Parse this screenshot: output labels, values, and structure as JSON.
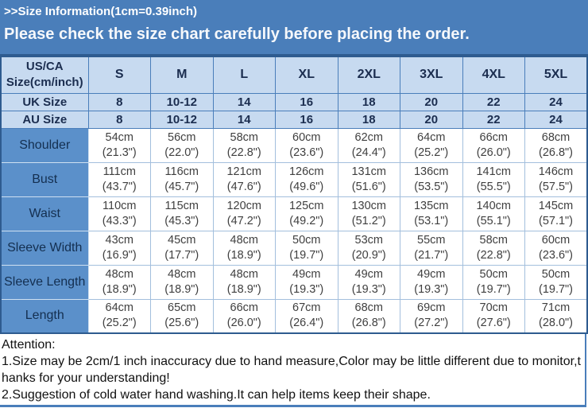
{
  "banner": {
    "line1": ">>Size Information(1cm=0.39inch)",
    "line2": "Please check the size chart carefully before placing the order."
  },
  "table": {
    "header": [
      "US/CA\nSize(cm/inch)",
      "S",
      "M",
      "L",
      "XL",
      "2XL",
      "3XL",
      "4XL",
      "5XL"
    ],
    "size_rows": [
      {
        "label": "UK Size",
        "values": [
          "8",
          "10-12",
          "14",
          "16",
          "18",
          "20",
          "22",
          "24"
        ]
      },
      {
        "label": "AU Size",
        "values": [
          "8",
          "10-12",
          "14",
          "16",
          "18",
          "20",
          "22",
          "24"
        ]
      }
    ],
    "measure_rows": [
      {
        "label": "Shoulder",
        "values": [
          [
            "54cm",
            "(21.3\")"
          ],
          [
            "56cm",
            "(22.0\")"
          ],
          [
            "58cm",
            "(22.8\")"
          ],
          [
            "60cm",
            "(23.6\")"
          ],
          [
            "62cm",
            "(24.4\")"
          ],
          [
            "64cm",
            "(25.2\")"
          ],
          [
            "66cm",
            "(26.0\")"
          ],
          [
            "68cm",
            "(26.8\")"
          ]
        ]
      },
      {
        "label": "Bust",
        "values": [
          [
            "111cm",
            "(43.7\")"
          ],
          [
            "116cm",
            "(45.7\")"
          ],
          [
            "121cm",
            "(47.6\")"
          ],
          [
            "126cm",
            "(49.6\")"
          ],
          [
            "131cm",
            "(51.6\")"
          ],
          [
            "136cm",
            "(53.5\")"
          ],
          [
            "141cm",
            "(55.5\")"
          ],
          [
            "146cm",
            "(57.5\")"
          ]
        ]
      },
      {
        "label": "Waist",
        "values": [
          [
            "110cm",
            "(43.3\")"
          ],
          [
            "115cm",
            "(45.3\")"
          ],
          [
            "120cm",
            "(47.2\")"
          ],
          [
            "125cm",
            "(49.2\")"
          ],
          [
            "130cm",
            "(51.2\")"
          ],
          [
            "135cm",
            "(53.1\")"
          ],
          [
            "140cm",
            "(55.1\")"
          ],
          [
            "145cm",
            "(57.1\")"
          ]
        ]
      },
      {
        "label": "Sleeve Width",
        "values": [
          [
            "43cm",
            "(16.9\")"
          ],
          [
            "45cm",
            "(17.7\")"
          ],
          [
            "48cm",
            "(18.9\")"
          ],
          [
            "50cm",
            "(19.7\")"
          ],
          [
            "53cm",
            "(20.9\")"
          ],
          [
            "55cm",
            "(21.7\")"
          ],
          [
            "58cm",
            "(22.8\")"
          ],
          [
            "60cm",
            "(23.6\")"
          ]
        ]
      },
      {
        "label": "Sleeve Length",
        "values": [
          [
            "48cm",
            "(18.9\")"
          ],
          [
            "48cm",
            "(18.9\")"
          ],
          [
            "48cm",
            "(18.9\")"
          ],
          [
            "49cm",
            "(19.3\")"
          ],
          [
            "49cm",
            "(19.3\")"
          ],
          [
            "49cm",
            "(19.3\")"
          ],
          [
            "50cm",
            "(19.7\")"
          ],
          [
            "50cm",
            "(19.7\")"
          ]
        ]
      },
      {
        "label": "Length",
        "values": [
          [
            "64cm",
            "(25.2\")"
          ],
          [
            "65cm",
            "(25.6\")"
          ],
          [
            "66cm",
            "(26.0\")"
          ],
          [
            "67cm",
            "(26.4\")"
          ],
          [
            "68cm",
            "(26.8\")"
          ],
          [
            "69cm",
            "(27.2\")"
          ],
          [
            "70cm",
            "(27.6\")"
          ],
          [
            "71cm",
            "(28.0\")"
          ]
        ]
      }
    ]
  },
  "attention": {
    "lines": [
      "Attention:",
      "1.Size may be 2cm/1 inch inaccuracy due to hand measure,Color may be little different due to monitor,t",
      "hanks for your understanding!",
      "2.Suggestion of cold water hand washing.It can help items keep their shape."
    ]
  },
  "colors": {
    "banner_bg": "#4a7eba",
    "header_bg": "#c7daf0",
    "label_bg": "#5b90ca",
    "grid_dark": "#2e5b8f",
    "grid_head": "#4a7eba",
    "grid_light": "#a3bfdd",
    "header_text": "#1b2d4f",
    "cell_text": "#3f3f3f"
  }
}
